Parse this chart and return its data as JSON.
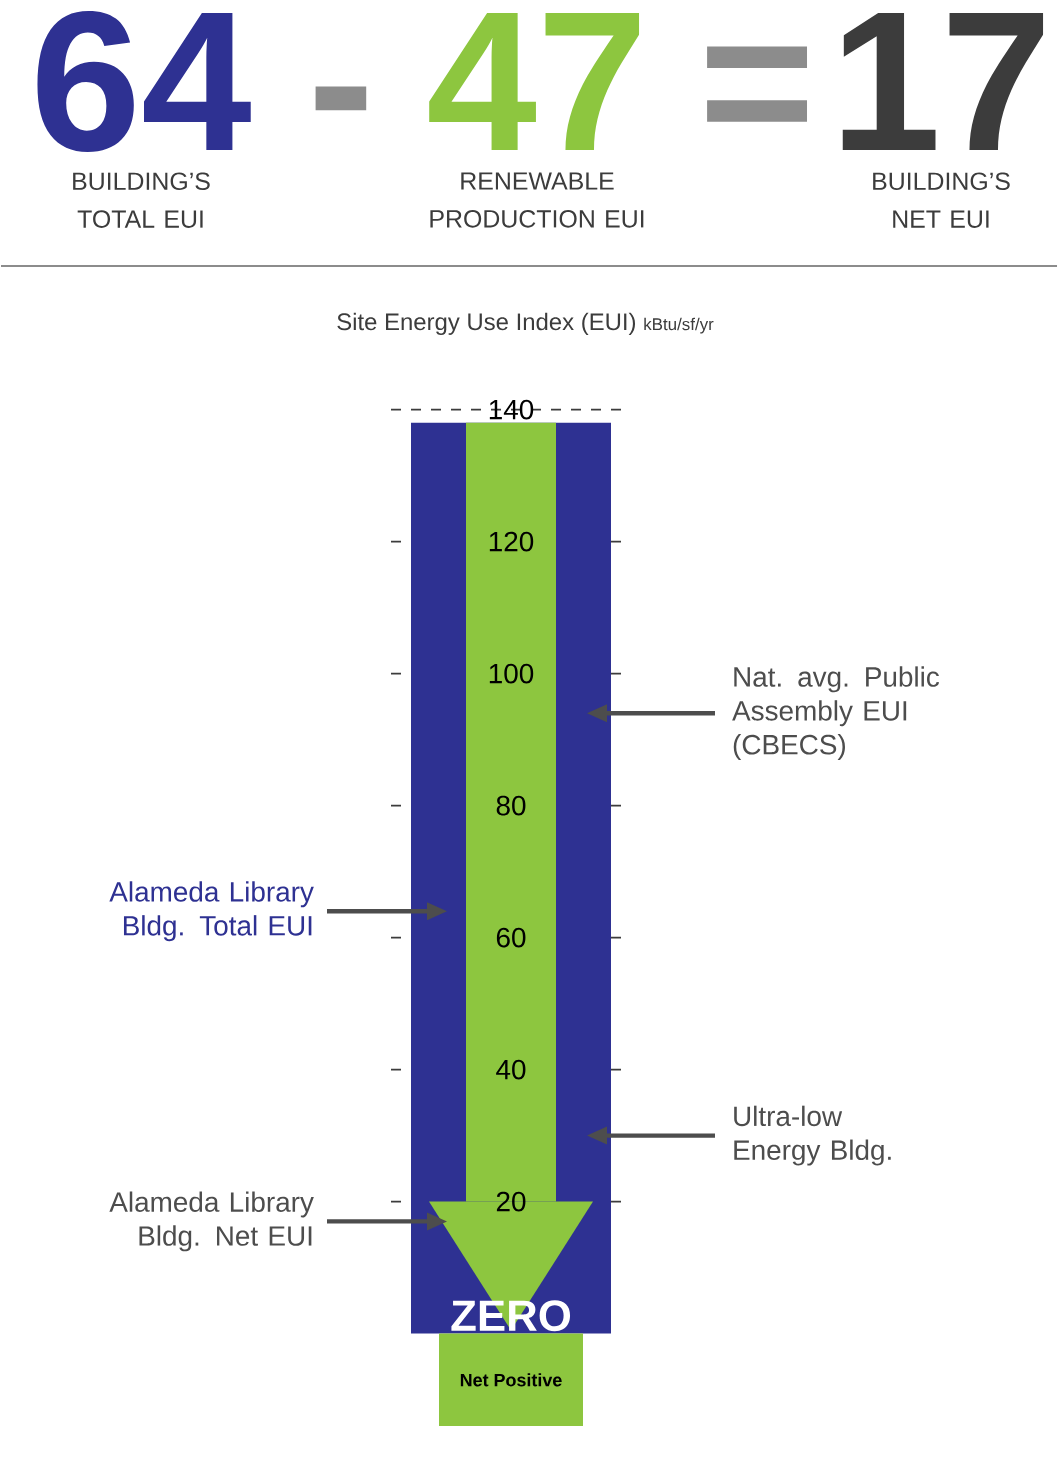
{
  "chart_data": {
    "type": "bar",
    "title": "Site Energy Use Index (EUI)",
    "ylabel": "kBtu/sf/yr",
    "categories": [
      null
    ],
    "series": [
      {
        "color": "#2e3192",
        "values": [
          138
        ]
      },
      {
        "color": "#8dc63f",
        "values": [
          118
        ],
        "base": [
          20
        ]
      },
      {
        "color": "#8dc63f",
        "values": [
          -14
        ]
      }
    ],
    "ylim": [
      -14,
      140
    ],
    "yticks": [
      20,
      40,
      60,
      80,
      100,
      120,
      140
    ],
    "grid": "y",
    "ref_lines": [
      {
        "axis": "y",
        "value": 94,
        "label": "Nat. avg. Public Assembly EUI (CBECS)"
      },
      {
        "axis": "y",
        "value": 64,
        "label": "Alameda Library Bldg. Total EUI"
      },
      {
        "axis": "y",
        "value": 30,
        "label": "Ultra-low Energy Bldg."
      },
      {
        "axis": "y",
        "value": 17,
        "label": "Alameda Library Bldg. Net EUI"
      }
    ],
    "annotations": [
      "64",
      "-",
      "47",
      "=",
      "17",
      "BUILDING’S TOTAL EUI",
      "RENEWABLE PRODUCTION EUI",
      "BUILDING’S NET EUI",
      "ZERO",
      "Net Positive"
    ]
  }
}
